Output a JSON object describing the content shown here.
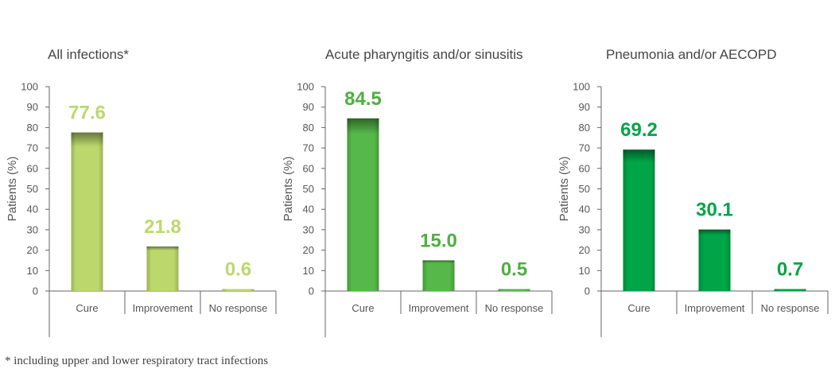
{
  "chart_data": [
    {
      "type": "bar",
      "title": "All infections*",
      "ylabel": "Patients (%)",
      "ylim": [
        0,
        100
      ],
      "yticks": [
        0,
        10,
        20,
        30,
        40,
        50,
        60,
        70,
        80,
        90,
        100
      ],
      "categories": [
        "Cure",
        "Improvement",
        "No response"
      ],
      "values": [
        77.6,
        21.8,
        0.6
      ],
      "value_labels": [
        "77.6",
        "21.8",
        "0.6"
      ],
      "bar_color": "#bcd86c",
      "label_color": "#bcd86c",
      "grid": false,
      "legend": "none"
    },
    {
      "type": "bar",
      "title": "Acute pharyngitis and/or sinusitis",
      "ylabel": "Patients (%)",
      "ylim": [
        0,
        100
      ],
      "yticks": [
        0,
        10,
        20,
        30,
        40,
        50,
        60,
        70,
        80,
        90,
        100
      ],
      "categories": [
        "Cure",
        "Improvement",
        "No response"
      ],
      "values": [
        84.5,
        15.0,
        0.5
      ],
      "value_labels": [
        "84.5",
        "15.0",
        "0.5"
      ],
      "bar_color": "#56b848",
      "label_color": "#4daf3f",
      "grid": false,
      "legend": "none"
    },
    {
      "type": "bar",
      "title": "Pneumonia and/or AECOPD",
      "ylabel": "Patients (%)",
      "ylim": [
        0,
        100
      ],
      "yticks": [
        0,
        10,
        20,
        30,
        40,
        50,
        60,
        70,
        80,
        90,
        100
      ],
      "categories": [
        "Cure",
        "Improvement",
        "No response"
      ],
      "values": [
        69.2,
        30.1,
        0.7
      ],
      "value_labels": [
        "69.2",
        "30.1",
        "0.7"
      ],
      "bar_color": "#00a547",
      "label_color": "#00a547",
      "grid": false,
      "legend": "none"
    }
  ],
  "footnote": "* including upper and lower respiratory tract infections"
}
